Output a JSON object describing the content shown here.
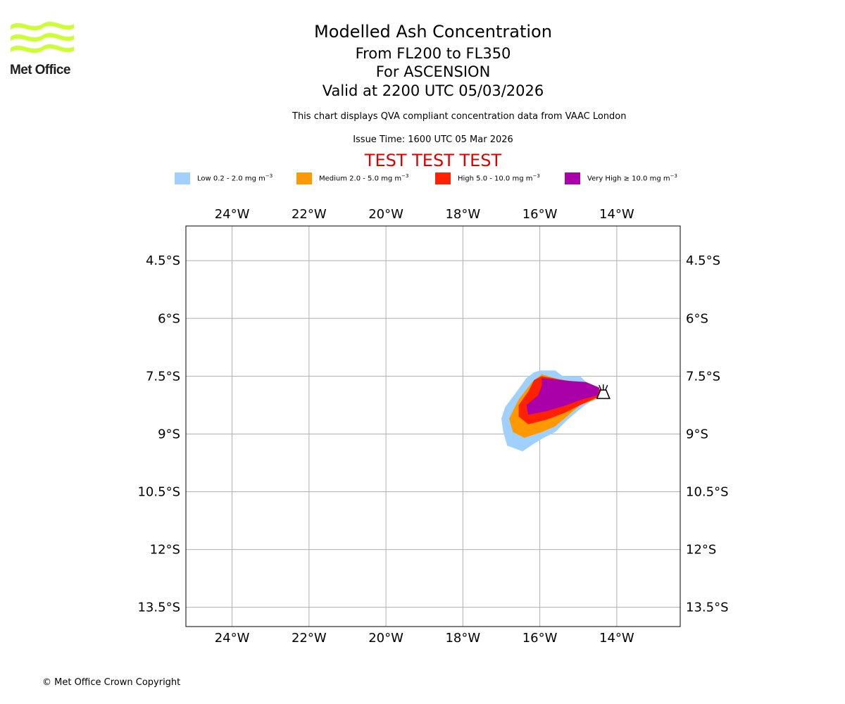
{
  "header": {
    "title": "Modelled Ash Concentration",
    "subtitle_levels": "From FL200 to FL350",
    "subtitle_location": "For ASCENSION",
    "subtitle_valid": "Valid at 2200 UTC 05/03/2026",
    "qva_note": "This chart displays QVA compliant concentration data from VAAC London",
    "issue_time": "Issue Time: 1600 UTC 05 Mar 2026",
    "test_banner": "TEST TEST TEST"
  },
  "logo": {
    "text": "Met Office",
    "color": "#ccff33"
  },
  "legend": [
    {
      "label": "Low 0.2 - 2.0 mg m",
      "exp": "−3",
      "color": "#a0d0ff"
    },
    {
      "label": "Medium 2.0 - 5.0 mg m",
      "exp": "−3",
      "color": "#ff9900"
    },
    {
      "label": "High 5.0 - 10.0 mg m",
      "exp": "−3",
      "color": "#ff2200"
    },
    {
      "label": "Very High  ≥  10.0 mg m",
      "exp": "−3",
      "color": "#aa00aa"
    }
  ],
  "map": {
    "lon_range": [
      -25.2,
      -12.35
    ],
    "lat_range": [
      -14.0,
      -3.6
    ],
    "lon_ticks": [
      {
        "value": -24,
        "label": "24°W"
      },
      {
        "value": -22,
        "label": "22°W"
      },
      {
        "value": -20,
        "label": "20°W"
      },
      {
        "value": -18,
        "label": "18°W"
      },
      {
        "value": -16,
        "label": "16°W"
      },
      {
        "value": -14,
        "label": "14°W"
      }
    ],
    "lat_ticks": [
      {
        "value": -4.5,
        "label": "4.5°S"
      },
      {
        "value": -6,
        "label": "6°S"
      },
      {
        "value": -7.5,
        "label": "7.5°S"
      },
      {
        "value": -9,
        "label": "9°S"
      },
      {
        "value": -10.5,
        "label": "10.5°S"
      },
      {
        "value": -12,
        "label": "12°S"
      },
      {
        "value": -13.5,
        "label": "13.5°S"
      }
    ],
    "ash_regions": [
      {
        "level": "low",
        "color": "#a0d0ff",
        "coords": [
          [
            -16.0,
            -7.35
          ],
          [
            -15.6,
            -7.35
          ],
          [
            -15.4,
            -7.5
          ],
          [
            -14.95,
            -7.5
          ],
          [
            -14.8,
            -7.65
          ],
          [
            -14.45,
            -7.85
          ],
          [
            -14.55,
            -8.05
          ],
          [
            -14.95,
            -8.35
          ],
          [
            -15.3,
            -8.65
          ],
          [
            -15.6,
            -8.95
          ],
          [
            -15.9,
            -9.1
          ],
          [
            -16.15,
            -9.25
          ],
          [
            -16.45,
            -9.45
          ],
          [
            -16.85,
            -9.3
          ],
          [
            -16.95,
            -8.95
          ],
          [
            -17.0,
            -8.6
          ],
          [
            -16.9,
            -8.3
          ],
          [
            -16.6,
            -7.9
          ],
          [
            -16.35,
            -7.55
          ],
          [
            -16.15,
            -7.4
          ]
        ]
      },
      {
        "level": "medium",
        "color": "#ff9900",
        "coords": [
          [
            -15.95,
            -7.45
          ],
          [
            -15.45,
            -7.6
          ],
          [
            -14.95,
            -7.65
          ],
          [
            -14.45,
            -7.85
          ],
          [
            -14.55,
            -8.1
          ],
          [
            -14.95,
            -8.25
          ],
          [
            -15.3,
            -8.55
          ],
          [
            -15.6,
            -8.8
          ],
          [
            -15.95,
            -8.95
          ],
          [
            -16.4,
            -9.1
          ],
          [
            -16.7,
            -8.95
          ],
          [
            -16.8,
            -8.6
          ],
          [
            -16.55,
            -8.1
          ],
          [
            -16.2,
            -7.65
          ]
        ]
      },
      {
        "level": "high",
        "color": "#ff2200",
        "coords": [
          [
            -15.95,
            -7.5
          ],
          [
            -15.4,
            -7.6
          ],
          [
            -14.85,
            -7.68
          ],
          [
            -14.4,
            -7.85
          ],
          [
            -14.5,
            -8.05
          ],
          [
            -14.95,
            -8.25
          ],
          [
            -15.35,
            -8.45
          ],
          [
            -15.8,
            -8.62
          ],
          [
            -16.3,
            -8.75
          ],
          [
            -16.55,
            -8.55
          ],
          [
            -16.55,
            -8.25
          ],
          [
            -16.3,
            -7.9
          ],
          [
            -16.15,
            -7.6
          ]
        ]
      },
      {
        "level": "very_high",
        "color": "#aa00aa",
        "coords": [
          [
            -15.95,
            -7.55
          ],
          [
            -15.3,
            -7.62
          ],
          [
            -14.8,
            -7.65
          ],
          [
            -14.45,
            -7.8
          ],
          [
            -14.5,
            -8.0
          ],
          [
            -14.9,
            -8.1
          ],
          [
            -15.3,
            -8.25
          ],
          [
            -15.8,
            -8.4
          ],
          [
            -16.3,
            -8.5
          ],
          [
            -16.35,
            -8.25
          ],
          [
            -16.05,
            -8.0
          ],
          [
            -15.95,
            -7.75
          ]
        ]
      }
    ],
    "volcano": {
      "lon": -14.35,
      "lat": -7.95
    }
  },
  "footer": {
    "copyright": "© Met Office Crown Copyright"
  }
}
